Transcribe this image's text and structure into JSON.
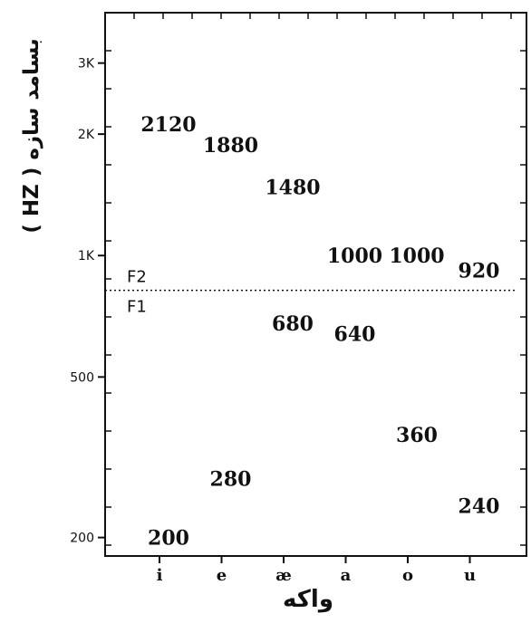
{
  "chart_data": {
    "type": "scatter",
    "title": "",
    "xlabel": "واکه",
    "ylabel": "بسامد سازه ( HZ )",
    "y_scale": "log",
    "ylim": [
      180,
      4000
    ],
    "y_ticks": [
      {
        "value": 200,
        "label": "200"
      },
      {
        "value": 500,
        "label": "500"
      },
      {
        "value": 1000,
        "label": "1K"
      },
      {
        "value": 2000,
        "label": "2K"
      },
      {
        "value": 3000,
        "label": "3K"
      }
    ],
    "categories": [
      "i",
      "e",
      "æ",
      "a",
      "o",
      "u"
    ],
    "boundary": {
      "value": 820,
      "upper_label": "F2",
      "lower_label": "F1"
    },
    "series": [
      {
        "name": "F2",
        "values": [
          2120,
          1880,
          1480,
          1000,
          1000,
          920
        ]
      },
      {
        "name": "F1",
        "values": [
          200,
          280,
          680,
          640,
          360,
          240
        ]
      }
    ],
    "grid": false
  }
}
